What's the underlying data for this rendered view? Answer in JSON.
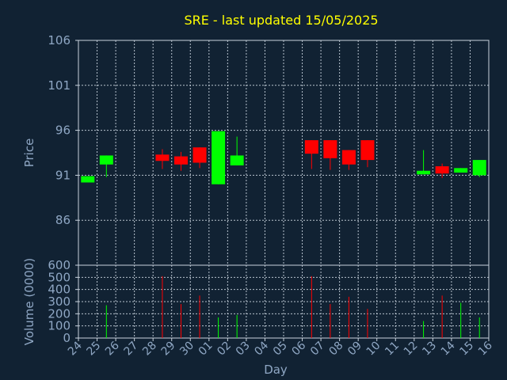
{
  "chart_data": {
    "type": "candlestick",
    "title": "SRE - last updated 15/05/2025",
    "xlabel": "Day",
    "colors": {
      "up": "#00ff00",
      "down": "#ff0000",
      "background": "#112233",
      "title": "#ffff00",
      "text": "#8fa7c4",
      "grid": "#c9d3de"
    },
    "x_ticks": [
      "24",
      "25",
      "26",
      "27",
      "28",
      "29",
      "30",
      "01",
      "02",
      "03",
      "04",
      "05",
      "06",
      "07",
      "08",
      "09",
      "10",
      "11",
      "12",
      "13",
      "14",
      "15",
      "16"
    ],
    "price_panel": {
      "ylabel": "Price",
      "ylim": [
        81,
        106
      ],
      "yticks": [
        86,
        91,
        96,
        101,
        106
      ],
      "grid": true
    },
    "volume_panel": {
      "ylabel": "Volume (0000)",
      "ylim": [
        0,
        600
      ],
      "yticks": [
        0,
        100,
        200,
        300,
        400,
        500,
        600
      ],
      "grid": true
    },
    "candles": [
      {
        "day": "24",
        "open": 90.2,
        "close": 90.9,
        "high": 90.9,
        "low": 90.2,
        "volume": 0
      },
      {
        "day": "25",
        "open": 92.2,
        "close": 93.2,
        "high": 93.2,
        "low": 90.8,
        "volume": 270
      },
      {
        "day": "28",
        "open": 93.3,
        "close": 92.6,
        "high": 93.9,
        "low": 91.7,
        "volume": 510
      },
      {
        "day": "29",
        "open": 93.1,
        "close": 92.2,
        "high": 93.6,
        "low": 91.5,
        "volume": 280
      },
      {
        "day": "30",
        "open": 94.1,
        "close": 92.4,
        "high": 94.1,
        "low": 91.8,
        "volume": 350
      },
      {
        "day": "01",
        "open": 90.0,
        "close": 95.9,
        "high": 95.9,
        "low": 90.0,
        "volume": 170
      },
      {
        "day": "02",
        "open": 92.1,
        "close": 93.2,
        "high": 95.3,
        "low": 92.1,
        "volume": 190
      },
      {
        "day": "06",
        "open": 94.9,
        "close": 93.4,
        "high": 94.9,
        "low": 91.7,
        "volume": 510
      },
      {
        "day": "07",
        "open": 94.9,
        "close": 92.9,
        "high": 94.9,
        "low": 91.6,
        "volume": 280
      },
      {
        "day": "08",
        "open": 93.8,
        "close": 92.2,
        "high": 93.8,
        "low": 91.6,
        "volume": 340
      },
      {
        "day": "09",
        "open": 94.9,
        "close": 92.7,
        "high": 94.9,
        "low": 91.9,
        "volume": 240
      },
      {
        "day": "12",
        "open": 91.1,
        "close": 91.5,
        "high": 93.8,
        "low": 91.1,
        "volume": 140
      },
      {
        "day": "13",
        "open": 92.0,
        "close": 91.2,
        "high": 92.3,
        "low": 90.7,
        "volume": 350
      },
      {
        "day": "14",
        "open": 91.3,
        "close": 91.8,
        "high": 91.8,
        "low": 91.3,
        "volume": 290
      },
      {
        "day": "15",
        "open": 91.0,
        "close": 92.7,
        "high": 92.7,
        "low": 90.8,
        "volume": 170
      }
    ]
  }
}
